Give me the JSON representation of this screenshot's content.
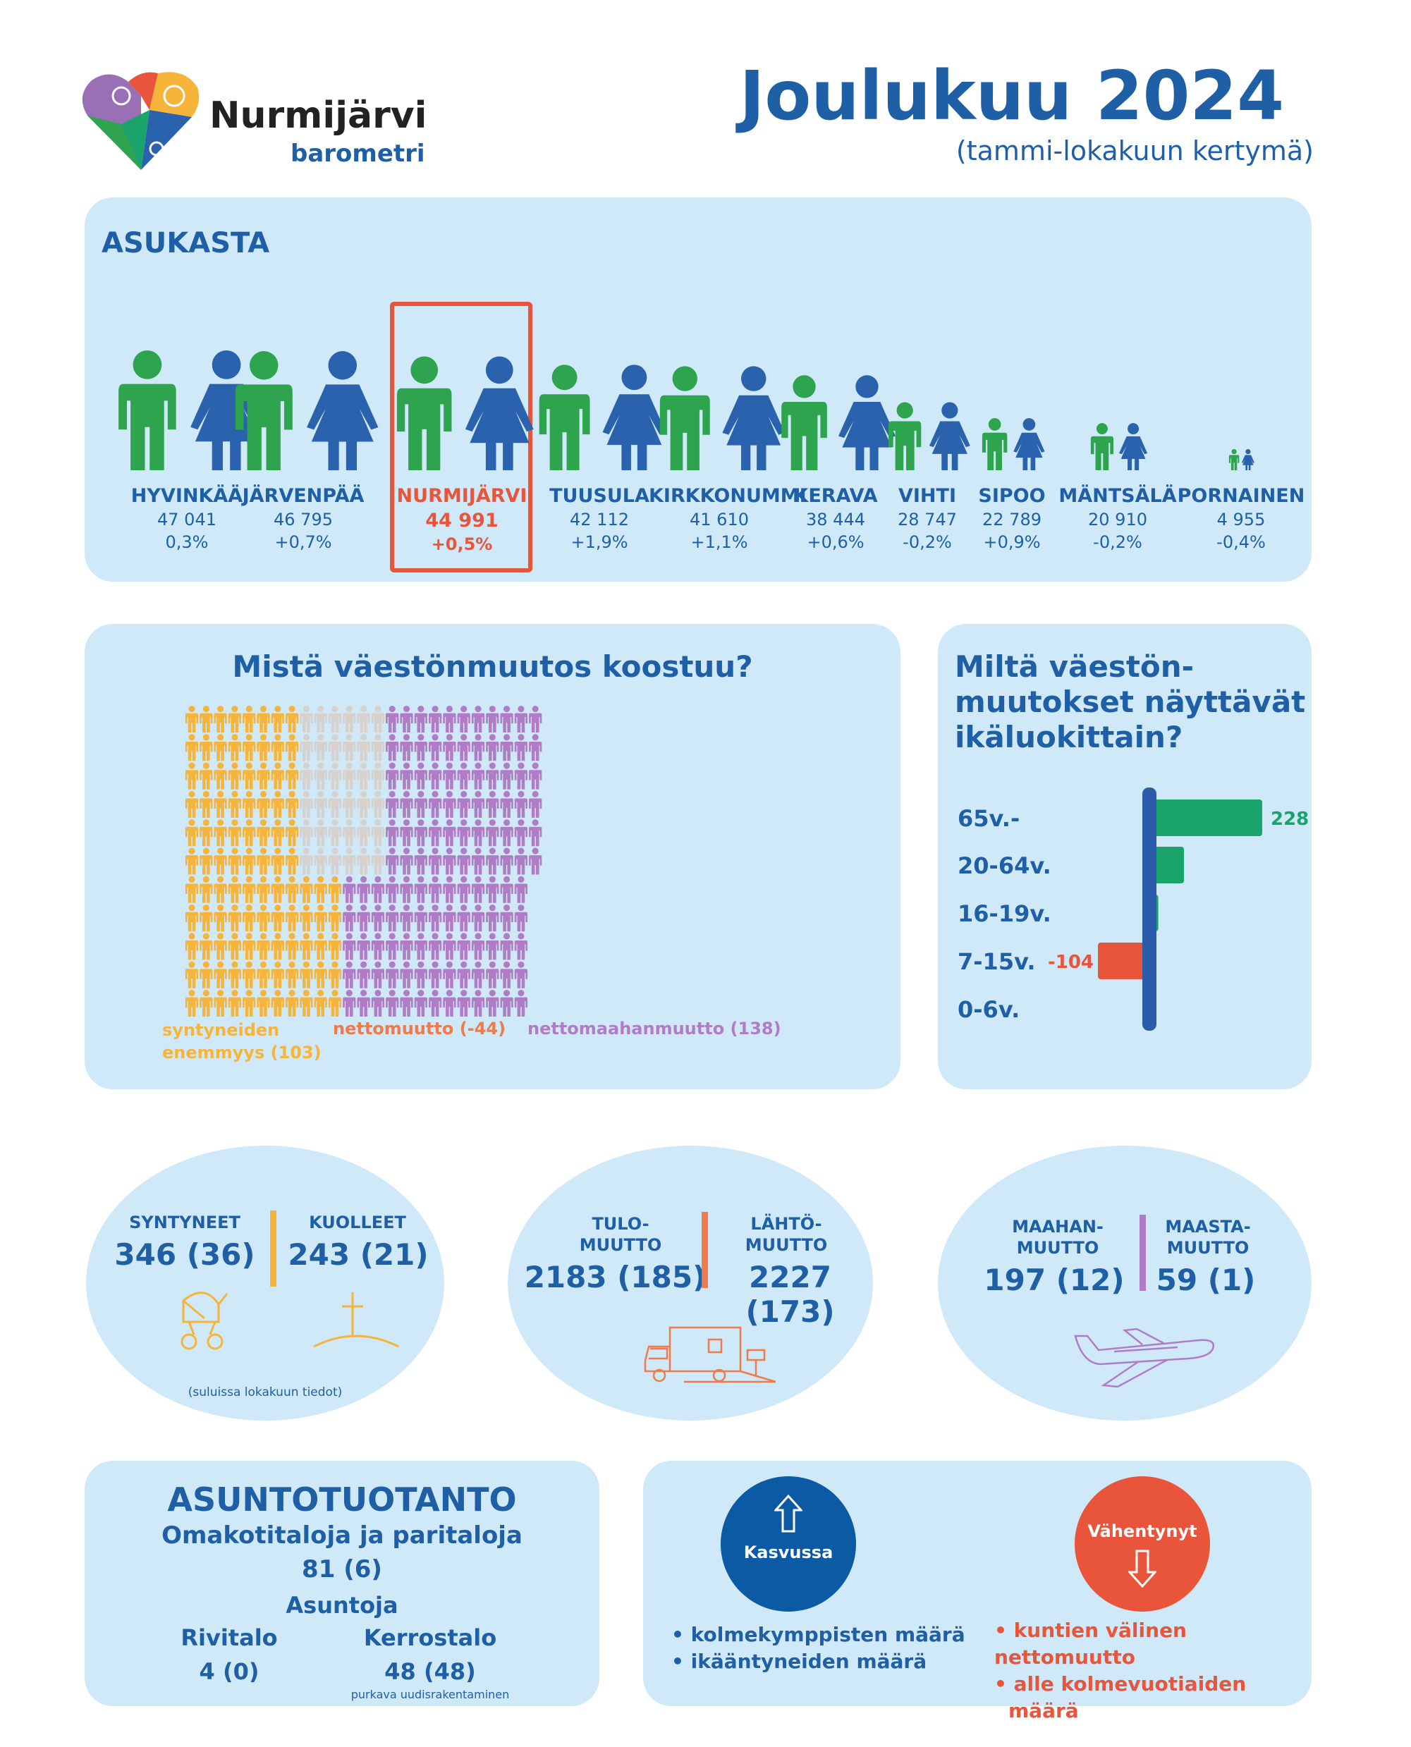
{
  "header": {
    "logo_name": "Nurmijärvi",
    "logo_sub": "barometri",
    "title": "Joulukuu 2024",
    "subtitle": "(tammi-lokakuun kertymä)"
  },
  "asukasta": {
    "heading": "ASUKASTA",
    "municipalities": [
      {
        "name": "HYVINKÄÄ",
        "population": "47 041",
        "change": "0,3%",
        "population_value": 47041
      },
      {
        "name": "JÄRVENPÄÄ",
        "population": "46 795",
        "change": "+0,7%",
        "population_value": 46795
      },
      {
        "name": "NURMIJÄRVI",
        "population": "44 991",
        "change": "+0,5%",
        "population_value": 44991,
        "highlight": true
      },
      {
        "name": "TUUSULA",
        "population": "42 112",
        "change": "+1,9%",
        "population_value": 42112
      },
      {
        "name": "KIRKKONUMMI",
        "population": "41 610",
        "change": "+1,1%",
        "population_value": 41610
      },
      {
        "name": "KERAVA",
        "population": "38 444",
        "change": "+0,6%",
        "population_value": 38444
      },
      {
        "name": "VIHTI",
        "population": "28 747",
        "change": "-0,2%",
        "population_value": 28747
      },
      {
        "name": "SIPOO",
        "population": "22 789",
        "change": "+0,9%",
        "population_value": 22789
      },
      {
        "name": "MÄNTSÄLÄ",
        "population": "20 910",
        "change": "-0,2%",
        "population_value": 20910
      },
      {
        "name": "PORNAINEN",
        "population": "4 955",
        "change": "-0,4%",
        "population_value": 4955
      }
    ],
    "colors": {
      "male": "#2fa44f",
      "female": "#2b62ad",
      "highlight": "#e8553b"
    }
  },
  "composition": {
    "title": "Mistä väestönmuutos koostuu?",
    "legend": [
      {
        "label": "syntyneiden enemmyys (103)",
        "line1": "syntyneiden",
        "line2": "enemmyys (103)",
        "color": "#f6b43b",
        "value": 103
      },
      {
        "label": "nettomuutto (-44)",
        "color": "#ef7a4b",
        "value": -44
      },
      {
        "label": "nettomaahanmuutto (138)",
        "color": "#b07cc6",
        "value": 138
      }
    ],
    "grey_color": "#d6d1cc"
  },
  "age_chart": {
    "title_lines": [
      "Miltä  väestön-",
      "muutokset näyttävät",
      "ikäluokittain?"
    ],
    "chart_data": {
      "type": "bar",
      "orientation": "horizontal",
      "categories": [
        "65v.-",
        "20-64v.",
        "16-19v.",
        "7-15v.",
        "0-6v."
      ],
      "values": [
        228,
        70,
        18,
        -104,
        -8
      ],
      "data_labels": [
        "228",
        "",
        "",
        "-104",
        ""
      ],
      "colors": {
        "positive": "#1aa36b",
        "negative": "#e8553b",
        "axis": "#2b5cab"
      }
    }
  },
  "stats": {
    "births_deaths": {
      "left_label": "SYNTYNEET",
      "left_value": "346 (36)",
      "right_label": "KUOLLEET",
      "right_value": "243 (21)",
      "divider_color": "#f6b43b",
      "note": "(suluissa lokakuun tiedot)"
    },
    "migration": {
      "left_label_1": "TULO-",
      "left_label_2": "MUUTTO",
      "left_value": "2183 (185)",
      "right_label_1": "LÄHTÖ-",
      "right_label_2": "MUUTTO",
      "right_value": "2227 (173)",
      "divider_color": "#ef7a4b"
    },
    "immigration": {
      "left_label_1": "MAAHAN-",
      "left_label_2": "MUUTTO",
      "left_value": "197 (12)",
      "right_label_1": "MAASTA-",
      "right_label_2": "MUUTTO",
      "right_value": "59 (1)",
      "divider_color": "#b07cc6"
    }
  },
  "housing": {
    "title": "ASUNTOTUOTANTO",
    "sub1": "Omakotitaloja ja paritaloja",
    "sub1_value": "81 (6)",
    "sub2": "Asuntoja",
    "col1_label": "Rivitalo",
    "col1_value": "4 (0)",
    "col2_label": "Kerrostalo",
    "col2_value": "48 (48)",
    "note": "purkava uudisrakentaminen"
  },
  "trends": {
    "up_label": "Kasvussa",
    "up_items": [
      "• kolmekymppisten määrä",
      "• ikääntyneiden määrä"
    ],
    "down_label": "Vähentynyt",
    "down_items": [
      "• kuntien välinen nettomuutto",
      "• alle kolmevuotiaiden",
      "määrä"
    ],
    "up_color": "#0b5aa3",
    "down_color": "#e8553b"
  }
}
